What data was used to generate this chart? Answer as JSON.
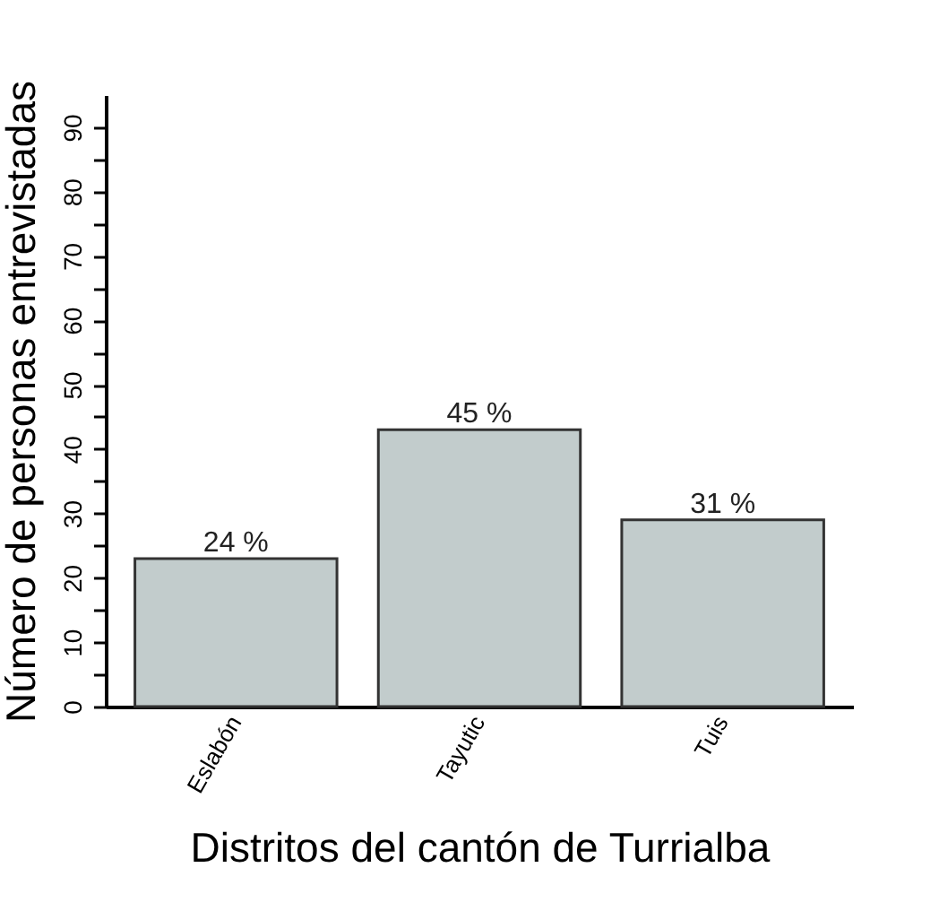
{
  "chart_data": {
    "type": "bar",
    "xlabel": "Distritos del cantón de Turrialba",
    "ylabel": "Número de personas entrevistadas",
    "categories": [
      "Eslabón",
      "Tayutic",
      "Tuis"
    ],
    "values": [
      23,
      43,
      29
    ],
    "annotations": [
      {
        "text": "24 %",
        "x": "Eslabón",
        "y": 23
      },
      {
        "text": "45 %",
        "x": "Tayutic",
        "y": 43
      },
      {
        "text": "31 %",
        "x": "Tuis",
        "y": 29
      }
    ],
    "color": "#c2cccc",
    "ylim": [
      0,
      95
    ],
    "yticks": [
      0,
      {
        "value": 5,
        "label": null
      },
      10,
      {
        "value": 15,
        "label": null
      },
      20,
      {
        "value": 25,
        "label": null
      },
      30,
      {
        "value": 35,
        "label": null
      },
      40,
      {
        "value": 45,
        "label": null
      },
      50,
      {
        "value": 55,
        "label": null
      },
      60,
      {
        "value": 65,
        "label": null
      },
      70,
      {
        "value": 75,
        "label": null
      },
      80,
      {
        "value": 85,
        "label": null
      },
      90
    ],
    "grid": false
  }
}
